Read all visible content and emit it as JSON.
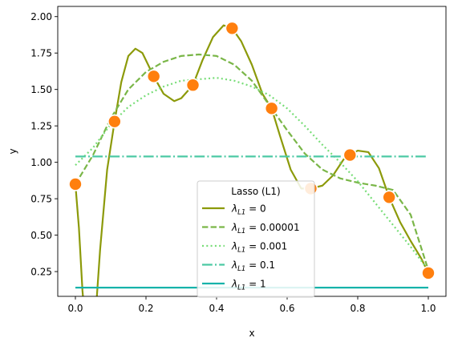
{
  "chart_data": {
    "type": "line",
    "xlabel": "x",
    "ylabel": "y",
    "xlim": [
      -0.05,
      1.05
    ],
    "ylim": [
      0.08,
      2.07
    ],
    "xticks": [
      "0.0",
      "0.2",
      "0.4",
      "0.6",
      "0.8",
      "1.0"
    ],
    "yticks": [
      "0.25",
      "0.50",
      "0.75",
      "1.00",
      "1.25",
      "1.50",
      "1.75",
      "2.00"
    ],
    "grid": false,
    "legend": {
      "title": "Lasso (L1)",
      "placement": "lower center"
    },
    "points": {
      "color": "#ff7f0e",
      "x": [
        0.0,
        0.111,
        0.222,
        0.333,
        0.444,
        0.556,
        0.667,
        0.778,
        0.889,
        1.0
      ],
      "y": [
        0.85,
        1.28,
        1.59,
        1.53,
        1.92,
        1.37,
        0.82,
        1.05,
        0.76,
        0.24
      ]
    },
    "series": [
      {
        "name": "0",
        "color": "#8c9a0a",
        "dash": "solid",
        "x": [
          0.0,
          0.01,
          0.02,
          0.035,
          0.05,
          0.06,
          0.07,
          0.09,
          0.111,
          0.13,
          0.15,
          0.17,
          0.19,
          0.222,
          0.25,
          0.28,
          0.3,
          0.333,
          0.36,
          0.39,
          0.42,
          0.444,
          0.47,
          0.5,
          0.53,
          0.556,
          0.58,
          0.61,
          0.64,
          0.667,
          0.7,
          0.73,
          0.76,
          0.778,
          0.8,
          0.83,
          0.86,
          0.889,
          0.92,
          0.95,
          0.98,
          1.0
        ],
        "y": [
          0.85,
          0.55,
          0.12,
          -0.3,
          -0.25,
          0.05,
          0.4,
          0.95,
          1.28,
          1.55,
          1.73,
          1.78,
          1.75,
          1.59,
          1.47,
          1.42,
          1.44,
          1.53,
          1.7,
          1.86,
          1.94,
          1.92,
          1.83,
          1.67,
          1.47,
          1.37,
          1.18,
          0.95,
          0.82,
          0.82,
          0.84,
          0.91,
          1.02,
          1.05,
          1.08,
          1.07,
          0.96,
          0.76,
          0.59,
          0.46,
          0.34,
          0.24
        ]
      },
      {
        "name": "0.00001",
        "color": "#7ab648",
        "dash": "dashed",
        "x": [
          0.0,
          0.05,
          0.1,
          0.15,
          0.2,
          0.25,
          0.3,
          0.35,
          0.4,
          0.45,
          0.5,
          0.55,
          0.6,
          0.65,
          0.7,
          0.75,
          0.8,
          0.85,
          0.9,
          0.95,
          1.0
        ],
        "y": [
          0.85,
          1.05,
          1.3,
          1.5,
          1.62,
          1.69,
          1.73,
          1.74,
          1.73,
          1.67,
          1.56,
          1.39,
          1.22,
          1.06,
          0.95,
          0.89,
          0.86,
          0.84,
          0.81,
          0.64,
          0.26
        ]
      },
      {
        "name": "0.001",
        "color": "#77dd77",
        "dash": "dotted",
        "x": [
          0.0,
          0.05,
          0.1,
          0.15,
          0.2,
          0.25,
          0.3,
          0.35,
          0.4,
          0.45,
          0.5,
          0.55,
          0.6,
          0.65,
          0.7,
          0.75,
          0.8,
          0.85,
          0.9,
          0.95,
          1.0
        ],
        "y": [
          0.98,
          1.1,
          1.26,
          1.38,
          1.46,
          1.52,
          1.56,
          1.57,
          1.58,
          1.56,
          1.52,
          1.46,
          1.37,
          1.25,
          1.12,
          1.0,
          0.87,
          0.72,
          0.57,
          0.42,
          0.26
        ]
      },
      {
        "name": "0.1",
        "color": "#4cc9a4",
        "dash": "dashdot",
        "x": [
          0.0,
          1.0
        ],
        "y": [
          1.04,
          1.04
        ]
      },
      {
        "name": "1",
        "color": "#16b3aa",
        "dash": "solid",
        "x": [
          0.0,
          1.0
        ],
        "y": [
          0.14,
          0.14
        ]
      }
    ]
  }
}
